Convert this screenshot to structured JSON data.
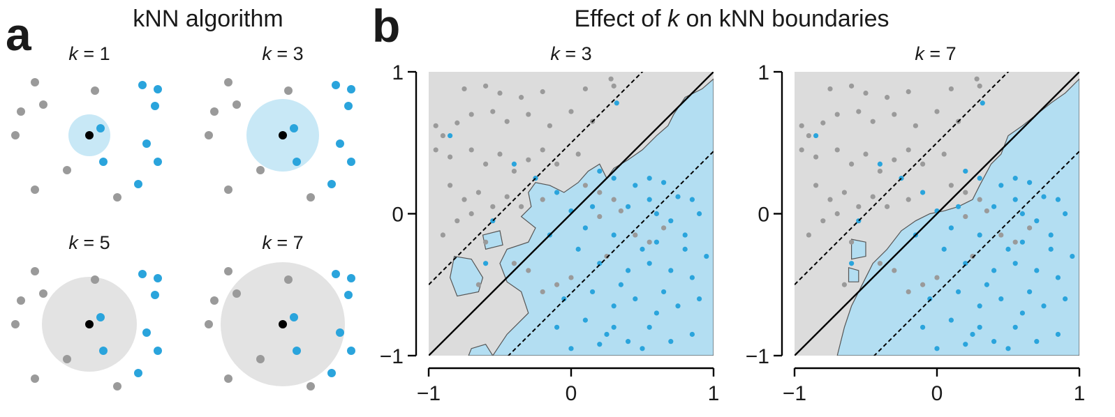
{
  "panel_a": {
    "letter": "a",
    "title": "kNN algorithm",
    "colors": {
      "class_gray": "#9a9a9a",
      "class_blue": "#2aa4dc",
      "query": "#000000",
      "circle_blue": "#c8e8f6",
      "circle_gray": "#e3e3e3"
    },
    "subpanels": [
      {
        "label": "k = 1",
        "k_symbol": "k",
        "k_value": "1",
        "circle_color": "blue"
      },
      {
        "label": "k = 3",
        "k_symbol": "k",
        "k_value": "3",
        "circle_color": "blue"
      },
      {
        "label": "k = 5",
        "k_symbol": "k",
        "k_value": "5",
        "circle_color": "gray"
      },
      {
        "label": "k = 7",
        "k_symbol": "k",
        "k_value": "7",
        "circle_color": "gray"
      }
    ]
  },
  "panel_b": {
    "letter": "b",
    "title_prefix": "Effect of ",
    "title_k": "k",
    "title_suffix": " on kNN boundaries",
    "colors": {
      "region_gray": "#dcdcdc",
      "region_blue": "#b3def2",
      "point_gray": "#9a9a9a",
      "point_blue": "#2aa4dc",
      "boundary": "#555555",
      "line": "#000000"
    }
  },
  "chart_data": [
    {
      "type": "scatter",
      "title": "k = 3",
      "xlim": [
        -1,
        1
      ],
      "ylim": [
        -1,
        1
      ],
      "xticks": [
        "−1",
        "0",
        "1"
      ],
      "yticks": [
        "−1",
        "0",
        "1"
      ],
      "lines": [
        {
          "style": "solid",
          "slope": 1,
          "intercept": 0
        },
        {
          "style": "dashed",
          "slope": 1,
          "intercept": 0.5
        },
        {
          "style": "dashed",
          "slope": 1,
          "intercept": -0.56
        }
      ],
      "series": [
        {
          "class": "gray",
          "points": [
            [
              -0.75,
              0.88
            ],
            [
              -0.6,
              0.9
            ],
            [
              -0.5,
              0.85
            ],
            [
              -0.35,
              0.82
            ],
            [
              -0.2,
              0.86
            ],
            [
              0.1,
              0.88
            ],
            [
              0.28,
              0.95
            ],
            [
              0.3,
              0.9
            ],
            [
              -0.95,
              0.62
            ],
            [
              -0.9,
              0.55
            ],
            [
              -0.8,
              0.64
            ],
            [
              -0.7,
              0.7
            ],
            [
              -0.55,
              0.72
            ],
            [
              -0.45,
              0.65
            ],
            [
              -0.3,
              0.7
            ],
            [
              -0.15,
              0.62
            ],
            [
              0.0,
              0.72
            ],
            [
              0.15,
              0.65
            ],
            [
              -0.85,
              0.4
            ],
            [
              -0.7,
              0.45
            ],
            [
              -0.6,
              0.35
            ],
            [
              -0.5,
              0.42
            ],
            [
              -0.4,
              0.3
            ],
            [
              -0.3,
              0.38
            ],
            [
              -0.2,
              0.45
            ],
            [
              -0.1,
              0.35
            ],
            [
              0.05,
              0.42
            ],
            [
              -0.85,
              0.2
            ],
            [
              -0.75,
              0.1
            ],
            [
              -0.65,
              0.15
            ],
            [
              -0.55,
              0.05
            ],
            [
              -0.45,
              0.12
            ],
            [
              -0.8,
              -0.05
            ],
            [
              -0.7,
              0.0
            ],
            [
              -0.9,
              -0.15
            ],
            [
              -0.6,
              -0.2
            ],
            [
              -0.35,
              0.05
            ],
            [
              -0.2,
              0.1
            ],
            [
              0.1,
              0.2
            ],
            [
              0.2,
              0.15
            ],
            [
              0.3,
              0.1
            ],
            [
              0.35,
              0.02
            ],
            [
              0.2,
              -0.02
            ],
            [
              0.45,
              -0.15
            ],
            [
              0.55,
              -0.2
            ],
            [
              0.65,
              -0.1
            ],
            [
              -0.4,
              -0.35
            ],
            [
              -0.3,
              -0.4
            ],
            [
              0.25,
              -0.3
            ],
            [
              -0.2,
              -0.55
            ],
            [
              -0.1,
              -0.5
            ],
            [
              0.0,
              -0.45
            ],
            [
              -0.95,
              0.45
            ],
            [
              -0.65,
              -0.5
            ]
          ]
        },
        {
          "class": "blue",
          "points": [
            [
              0.32,
              0.78
            ],
            [
              -0.85,
              0.55
            ],
            [
              -0.4,
              0.35
            ],
            [
              -0.25,
              0.25
            ],
            [
              -0.55,
              -0.05
            ],
            [
              -0.1,
              0.15
            ],
            [
              0.0,
              0.02
            ],
            [
              0.2,
              0.3
            ],
            [
              0.3,
              0.25
            ],
            [
              0.45,
              0.2
            ],
            [
              0.55,
              0.25
            ],
            [
              0.65,
              0.22
            ],
            [
              0.75,
              0.12
            ],
            [
              0.85,
              0.1
            ],
            [
              0.4,
              0.05
            ],
            [
              0.55,
              0.1
            ],
            [
              0.7,
              -0.05
            ],
            [
              0.9,
              0.0
            ],
            [
              0.1,
              -0.1
            ],
            [
              0.3,
              -0.15
            ],
            [
              0.5,
              -0.25
            ],
            [
              0.6,
              -0.2
            ],
            [
              0.8,
              -0.15
            ],
            [
              0.95,
              -0.3
            ],
            [
              -0.15,
              -0.15
            ],
            [
              0.05,
              -0.25
            ],
            [
              0.2,
              -0.35
            ],
            [
              0.4,
              -0.4
            ],
            [
              0.55,
              -0.35
            ],
            [
              0.7,
              -0.4
            ],
            [
              0.85,
              -0.45
            ],
            [
              -0.05,
              -0.6
            ],
            [
              0.15,
              -0.55
            ],
            [
              0.3,
              -0.65
            ],
            [
              0.45,
              -0.6
            ],
            [
              0.6,
              -0.7
            ],
            [
              0.75,
              -0.65
            ],
            [
              0.9,
              -0.6
            ],
            [
              -0.1,
              -0.8
            ],
            [
              0.1,
              -0.75
            ],
            [
              0.25,
              -0.85
            ],
            [
              0.4,
              -0.9
            ],
            [
              0.55,
              -0.8
            ],
            [
              0.7,
              -0.9
            ],
            [
              0.85,
              -0.85
            ],
            [
              0.0,
              -0.95
            ],
            [
              0.2,
              -0.92
            ],
            [
              0.5,
              -0.95
            ],
            [
              0.65,
              -0.55
            ],
            [
              0.35,
              -0.5
            ],
            [
              -0.6,
              -0.35
            ],
            [
              0.15,
              0.05
            ],
            [
              0.6,
              0.0
            ],
            [
              0.8,
              -0.25
            ],
            [
              0.3,
              -0.8
            ]
          ]
        }
      ]
    },
    {
      "type": "scatter",
      "title": "k = 7",
      "xlim": [
        -1,
        1
      ],
      "ylim": [
        -1,
        1
      ],
      "xticks": [
        "−1",
        "0",
        "1"
      ],
      "yticks": [
        "−1",
        "0",
        "1"
      ],
      "lines": [
        {
          "style": "solid",
          "slope": 1,
          "intercept": 0
        },
        {
          "style": "dashed",
          "slope": 1,
          "intercept": 0.5
        },
        {
          "style": "dashed",
          "slope": 1,
          "intercept": -0.56
        }
      ],
      "series": [
        {
          "class": "gray",
          "points": [
            [
              -0.75,
              0.88
            ],
            [
              -0.6,
              0.9
            ],
            [
              -0.5,
              0.85
            ],
            [
              -0.35,
              0.82
            ],
            [
              -0.2,
              0.86
            ],
            [
              0.1,
              0.88
            ],
            [
              0.28,
              0.95
            ],
            [
              0.3,
              0.9
            ],
            [
              -0.95,
              0.62
            ],
            [
              -0.9,
              0.55
            ],
            [
              -0.8,
              0.64
            ],
            [
              -0.7,
              0.7
            ],
            [
              -0.55,
              0.72
            ],
            [
              -0.45,
              0.65
            ],
            [
              -0.3,
              0.7
            ],
            [
              -0.15,
              0.62
            ],
            [
              0.0,
              0.72
            ],
            [
              0.15,
              0.65
            ],
            [
              -0.85,
              0.4
            ],
            [
              -0.7,
              0.45
            ],
            [
              -0.6,
              0.35
            ],
            [
              -0.5,
              0.42
            ],
            [
              -0.4,
              0.3
            ],
            [
              -0.3,
              0.38
            ],
            [
              -0.2,
              0.45
            ],
            [
              -0.1,
              0.35
            ],
            [
              0.05,
              0.42
            ],
            [
              -0.85,
              0.2
            ],
            [
              -0.75,
              0.1
            ],
            [
              -0.65,
              0.15
            ],
            [
              -0.55,
              0.05
            ],
            [
              -0.45,
              0.12
            ],
            [
              -0.8,
              -0.05
            ],
            [
              -0.7,
              0.0
            ],
            [
              -0.9,
              -0.15
            ],
            [
              -0.6,
              -0.2
            ],
            [
              -0.35,
              0.05
            ],
            [
              -0.2,
              0.1
            ],
            [
              0.1,
              0.2
            ],
            [
              0.2,
              0.15
            ],
            [
              0.3,
              0.1
            ],
            [
              0.35,
              0.02
            ],
            [
              0.2,
              -0.02
            ],
            [
              0.45,
              -0.15
            ],
            [
              0.55,
              -0.2
            ],
            [
              0.65,
              -0.1
            ],
            [
              -0.4,
              -0.35
            ],
            [
              -0.3,
              -0.4
            ],
            [
              0.25,
              -0.3
            ],
            [
              -0.2,
              -0.55
            ],
            [
              -0.1,
              -0.5
            ],
            [
              0.0,
              -0.45
            ],
            [
              -0.95,
              0.45
            ],
            [
              -0.65,
              -0.5
            ]
          ]
        },
        {
          "class": "blue",
          "points": [
            [
              0.32,
              0.78
            ],
            [
              -0.85,
              0.55
            ],
            [
              -0.4,
              0.35
            ],
            [
              -0.25,
              0.25
            ],
            [
              -0.55,
              -0.05
            ],
            [
              -0.1,
              0.15
            ],
            [
              0.0,
              0.02
            ],
            [
              0.2,
              0.3
            ],
            [
              0.3,
              0.25
            ],
            [
              0.45,
              0.2
            ],
            [
              0.55,
              0.25
            ],
            [
              0.65,
              0.22
            ],
            [
              0.75,
              0.12
            ],
            [
              0.85,
              0.1
            ],
            [
              0.4,
              0.05
            ],
            [
              0.55,
              0.1
            ],
            [
              0.7,
              -0.05
            ],
            [
              0.9,
              0.0
            ],
            [
              0.1,
              -0.1
            ],
            [
              0.3,
              -0.15
            ],
            [
              0.5,
              -0.25
            ],
            [
              0.6,
              -0.2
            ],
            [
              0.8,
              -0.15
            ],
            [
              0.95,
              -0.3
            ],
            [
              -0.15,
              -0.15
            ],
            [
              0.05,
              -0.25
            ],
            [
              0.2,
              -0.35
            ],
            [
              0.4,
              -0.4
            ],
            [
              0.55,
              -0.35
            ],
            [
              0.7,
              -0.4
            ],
            [
              0.85,
              -0.45
            ],
            [
              -0.05,
              -0.6
            ],
            [
              0.15,
              -0.55
            ],
            [
              0.3,
              -0.65
            ],
            [
              0.45,
              -0.6
            ],
            [
              0.6,
              -0.7
            ],
            [
              0.75,
              -0.65
            ],
            [
              0.9,
              -0.6
            ],
            [
              -0.1,
              -0.8
            ],
            [
              0.1,
              -0.75
            ],
            [
              0.25,
              -0.85
            ],
            [
              0.4,
              -0.9
            ],
            [
              0.55,
              -0.8
            ],
            [
              0.7,
              -0.9
            ],
            [
              0.85,
              -0.85
            ],
            [
              0.0,
              -0.95
            ],
            [
              0.2,
              -0.92
            ],
            [
              0.5,
              -0.95
            ],
            [
              0.65,
              -0.55
            ],
            [
              0.35,
              -0.5
            ],
            [
              -0.6,
              -0.35
            ],
            [
              0.15,
              0.05
            ],
            [
              0.6,
              0.0
            ],
            [
              0.8,
              -0.25
            ],
            [
              0.3,
              -0.8
            ]
          ]
        }
      ]
    }
  ]
}
